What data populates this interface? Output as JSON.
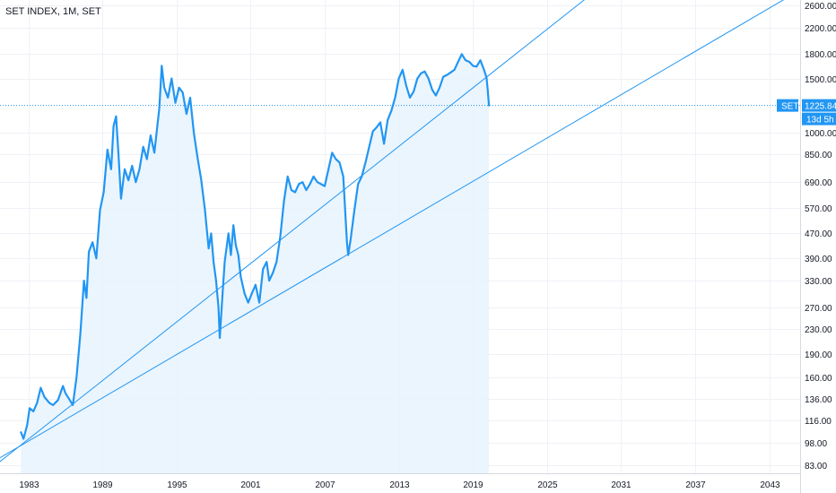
{
  "header": {
    "title": "SET INDEX, 1M, SET"
  },
  "colors": {
    "series": "#2196f3",
    "fill": "#e8f3fd",
    "trendline": "#2196f3",
    "grid": "#eef1f6",
    "badge": "#2196f3",
    "text": "#131722"
  },
  "price_badge": {
    "label": "SET",
    "value": "1225.84",
    "countdown": "13d 5h"
  },
  "chart_data": {
    "type": "area",
    "title": "SET INDEX, 1M, SET",
    "xlabel": "",
    "ylabel": "",
    "y_scale": "log",
    "xlim": [
      1980.7,
      2045.5
    ],
    "ylim": [
      78,
      2700
    ],
    "grid": true,
    "x_tick_labels": [
      "1983",
      "1989",
      "1995",
      "2001",
      "2007",
      "2013",
      "2019",
      "2025",
      "2031",
      "2037",
      "2043"
    ],
    "x_ticks": [
      1983,
      1989,
      1995,
      2001,
      2007,
      2013,
      2019,
      2025,
      2031,
      2037,
      2043
    ],
    "y_tick_labels": [
      "2600.00",
      "2200.00",
      "1800.00",
      "1500.00",
      "1000.00",
      "850.00",
      "690.00",
      "570.00",
      "470.00",
      "390.00",
      "330.00",
      "270.00",
      "230.00",
      "190.00",
      "160.00",
      "136.00",
      "116.00",
      "98.00",
      "83.00"
    ],
    "y_ticks": [
      2600,
      2200,
      1800,
      1500,
      1000,
      850,
      690,
      570,
      470,
      390,
      330,
      270,
      230,
      190,
      160,
      136,
      116,
      98,
      83
    ],
    "series": [
      {
        "points": [
          [
            1982.4,
            106
          ],
          [
            1982.6,
            101
          ],
          [
            1982.9,
            112
          ],
          [
            1983.1,
            127
          ],
          [
            1983.4,
            124
          ],
          [
            1983.7,
            132
          ],
          [
            1984.0,
            148
          ],
          [
            1984.3,
            138
          ],
          [
            1984.7,
            132
          ],
          [
            1985.0,
            130
          ],
          [
            1985.4,
            135
          ],
          [
            1985.8,
            150
          ],
          [
            1986.0,
            142
          ],
          [
            1986.3,
            136
          ],
          [
            1986.6,
            130
          ],
          [
            1986.9,
            160
          ],
          [
            1987.2,
            220
          ],
          [
            1987.5,
            330
          ],
          [
            1987.7,
            290
          ],
          [
            1987.9,
            410
          ],
          [
            1988.2,
            440
          ],
          [
            1988.5,
            390
          ],
          [
            1988.8,
            560
          ],
          [
            1989.1,
            640
          ],
          [
            1989.4,
            880
          ],
          [
            1989.7,
            760
          ],
          [
            1989.9,
            1050
          ],
          [
            1990.1,
            1130
          ],
          [
            1990.3,
            850
          ],
          [
            1990.5,
            610
          ],
          [
            1990.8,
            760
          ],
          [
            1991.1,
            700
          ],
          [
            1991.4,
            780
          ],
          [
            1991.7,
            690
          ],
          [
            1992.0,
            760
          ],
          [
            1992.3,
            900
          ],
          [
            1992.6,
            820
          ],
          [
            1992.9,
            980
          ],
          [
            1993.2,
            860
          ],
          [
            1993.6,
            1200
          ],
          [
            1993.8,
            1650
          ],
          [
            1994.0,
            1400
          ],
          [
            1994.3,
            1300
          ],
          [
            1994.6,
            1500
          ],
          [
            1994.9,
            1250
          ],
          [
            1995.2,
            1400
          ],
          [
            1995.5,
            1350
          ],
          [
            1995.8,
            1150
          ],
          [
            1996.1,
            1300
          ],
          [
            1996.4,
            1000
          ],
          [
            1996.7,
            830
          ],
          [
            1997.0,
            700
          ],
          [
            1997.3,
            560
          ],
          [
            1997.6,
            420
          ],
          [
            1997.8,
            470
          ],
          [
            1998.0,
            380
          ],
          [
            1998.2,
            330
          ],
          [
            1998.4,
            270
          ],
          [
            1998.5,
            215
          ],
          [
            1998.7,
            290
          ],
          [
            1998.9,
            380
          ],
          [
            1999.2,
            470
          ],
          [
            1999.4,
            400
          ],
          [
            1999.6,
            500
          ],
          [
            1999.8,
            430
          ],
          [
            2000.0,
            400
          ],
          [
            2000.2,
            340
          ],
          [
            2000.5,
            300
          ],
          [
            2000.8,
            280
          ],
          [
            2001.1,
            300
          ],
          [
            2001.4,
            320
          ],
          [
            2001.7,
            280
          ],
          [
            2002.0,
            360
          ],
          [
            2002.3,
            380
          ],
          [
            2002.5,
            330
          ],
          [
            2002.8,
            350
          ],
          [
            2003.1,
            380
          ],
          [
            2003.4,
            460
          ],
          [
            2003.7,
            600
          ],
          [
            2004.0,
            720
          ],
          [
            2004.3,
            650
          ],
          [
            2004.6,
            640
          ],
          [
            2004.9,
            680
          ],
          [
            2005.2,
            690
          ],
          [
            2005.5,
            650
          ],
          [
            2005.8,
            680
          ],
          [
            2006.1,
            720
          ],
          [
            2006.4,
            690
          ],
          [
            2006.7,
            680
          ],
          [
            2007.0,
            670
          ],
          [
            2007.3,
            760
          ],
          [
            2007.6,
            860
          ],
          [
            2007.9,
            820
          ],
          [
            2008.2,
            800
          ],
          [
            2008.5,
            720
          ],
          [
            2008.8,
            440
          ],
          [
            2008.9,
            400
          ],
          [
            2009.1,
            450
          ],
          [
            2009.4,
            560
          ],
          [
            2009.7,
            680
          ],
          [
            2010.0,
            720
          ],
          [
            2010.3,
            800
          ],
          [
            2010.6,
            900
          ],
          [
            2010.9,
            1010
          ],
          [
            2011.2,
            1040
          ],
          [
            2011.5,
            1080
          ],
          [
            2011.8,
            920
          ],
          [
            2012.1,
            1100
          ],
          [
            2012.4,
            1180
          ],
          [
            2012.7,
            1300
          ],
          [
            2013.0,
            1500
          ],
          [
            2013.3,
            1600
          ],
          [
            2013.6,
            1420
          ],
          [
            2013.9,
            1300
          ],
          [
            2014.2,
            1360
          ],
          [
            2014.5,
            1500
          ],
          [
            2014.8,
            1560
          ],
          [
            2015.1,
            1580
          ],
          [
            2015.4,
            1500
          ],
          [
            2015.7,
            1380
          ],
          [
            2016.0,
            1320
          ],
          [
            2016.3,
            1400
          ],
          [
            2016.6,
            1520
          ],
          [
            2016.9,
            1540
          ],
          [
            2017.2,
            1570
          ],
          [
            2017.5,
            1600
          ],
          [
            2017.8,
            1700
          ],
          [
            2018.1,
            1800
          ],
          [
            2018.4,
            1720
          ],
          [
            2018.7,
            1700
          ],
          [
            2019.0,
            1650
          ],
          [
            2019.3,
            1640
          ],
          [
            2019.6,
            1720
          ],
          [
            2019.9,
            1600
          ],
          [
            2020.1,
            1510
          ],
          [
            2020.2,
            1380
          ],
          [
            2020.3,
            1225.84
          ]
        ]
      }
    ],
    "trendlines": [
      {
        "from": [
          1979.5,
          78
        ],
        "to": [
          2028.5,
          2800
        ]
      },
      {
        "from": [
          1974.0,
          61
        ],
        "to": [
          2045.0,
          2830
        ]
      }
    ],
    "current_value": 1225.84
  }
}
